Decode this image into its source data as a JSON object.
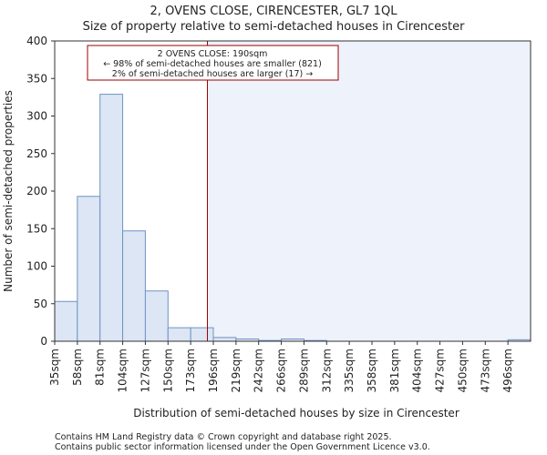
{
  "chart_data": {
    "type": "bar",
    "title": "2, OVENS CLOSE, CIRENCESTER, GL7 1QL",
    "subtitle": "Size of property relative to semi-detached houses in Cirencester",
    "xlabel": "Distribution of semi-detached houses by size in Cirencester",
    "ylabel": "Number of semi-detached properties",
    "ylim": [
      0,
      400
    ],
    "yticks": [
      0,
      50,
      100,
      150,
      200,
      250,
      300,
      350,
      400
    ],
    "categories": [
      "35sqm",
      "58sqm",
      "81sqm",
      "104sqm",
      "127sqm",
      "150sqm",
      "173sqm",
      "196sqm",
      "219sqm",
      "242sqm",
      "266sqm",
      "289sqm",
      "312sqm",
      "335sqm",
      "358sqm",
      "381sqm",
      "404sqm",
      "427sqm",
      "450sqm",
      "473sqm",
      "496sqm"
    ],
    "values": [
      53,
      193,
      329,
      147,
      67,
      18,
      18,
      5,
      3,
      1,
      3,
      1,
      0,
      0,
      0,
      0,
      0,
      0,
      0,
      0,
      2
    ],
    "marker": {
      "value_sqm": 190,
      "bin_start_sqm": 173,
      "bin_end_sqm": 196
    },
    "annotation": {
      "line1": "2 OVENS CLOSE: 190sqm",
      "line2": "← 98% of semi-detached houses are smaller (821)",
      "line3": "2% of semi-detached houses are larger (17) →"
    },
    "colors": {
      "bar_fill": "#dce6f4",
      "bar_stroke": "#6f93c4",
      "marker": "#990000",
      "shade": "#eef2fa",
      "axis": "#333333"
    }
  },
  "footer": {
    "line1": "Contains HM Land Registry data © Crown copyright and database right 2025.",
    "line2": "Contains public sector information licensed under the Open Government Licence v3.0."
  }
}
